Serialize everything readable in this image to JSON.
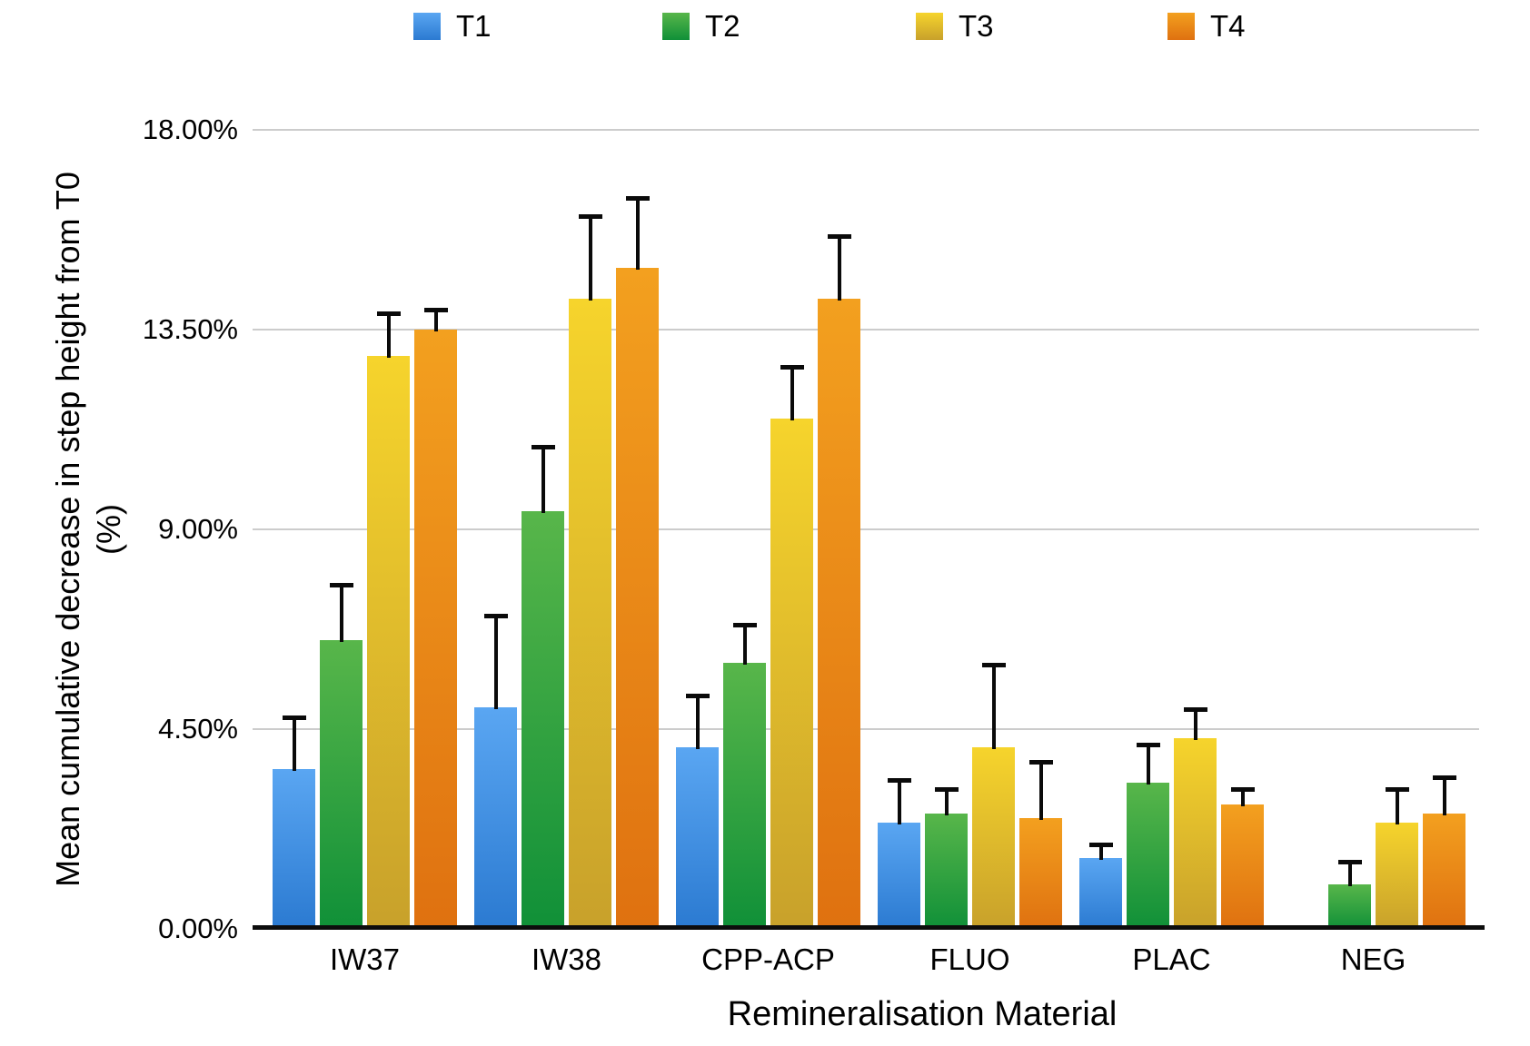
{
  "axes": {
    "y_title_line1": "Mean cumulative decrease in step height from T0",
    "y_title_line2": "(%)",
    "x_title": "Remineralisation Material"
  },
  "legend": {
    "items": [
      {
        "label": "T1",
        "color": "#3b8ade"
      },
      {
        "label": "T2",
        "color": "#2f9e3d"
      },
      {
        "label": "T3",
        "color": "#e3c02b"
      },
      {
        "label": "T4",
        "color": "#ec8c18"
      }
    ]
  },
  "chart_data": {
    "type": "bar",
    "title": "",
    "xlabel": "Remineralisation Material",
    "ylabel": "Mean cumulative decrease in step height from T0 (%)",
    "categories": [
      "IW37",
      "IW38",
      "CPP-ACP",
      "FLUO",
      "PLAC",
      "NEG"
    ],
    "ylim": [
      0,
      18
    ],
    "grid": "horizontal",
    "legend_position": "top",
    "yticks": [
      {
        "label": "18.00%",
        "value": 18
      },
      {
        "label": "13.50%",
        "value": 13.5
      },
      {
        "label": "9.00%",
        "value": 9
      },
      {
        "label": "4.50%",
        "value": 4.5
      },
      {
        "label": "0.00%",
        "value": 0
      }
    ],
    "series": [
      {
        "name": "T1",
        "color_top": "#5aa6f2",
        "color_bottom": "#2b7ad1",
        "values": [
          3.6,
          5.0,
          4.1,
          2.4,
          1.6,
          0
        ],
        "errors_plus": [
          1.2,
          2.1,
          1.2,
          1.0,
          0.35,
          0
        ]
      },
      {
        "name": "T2",
        "color_top": "#58b64a",
        "color_bottom": "#109038",
        "values": [
          6.5,
          9.4,
          6.0,
          2.6,
          3.3,
          1.0
        ],
        "errors_plus": [
          1.3,
          1.5,
          0.9,
          0.6,
          0.9,
          0.55
        ]
      },
      {
        "name": "T3",
        "color_top": "#f6d42c",
        "color_bottom": "#c8a12b",
        "values": [
          12.9,
          14.2,
          11.5,
          4.1,
          4.3,
          2.4
        ],
        "errors_plus": [
          1.0,
          1.9,
          1.2,
          1.9,
          0.7,
          0.8
        ]
      },
      {
        "name": "T4",
        "color_top": "#f3a01f",
        "color_bottom": "#df7110",
        "values": [
          13.5,
          14.9,
          14.2,
          2.5,
          2.8,
          2.6
        ],
        "errors_plus": [
          0.5,
          1.6,
          1.45,
          1.3,
          0.4,
          0.85
        ]
      }
    ]
  }
}
